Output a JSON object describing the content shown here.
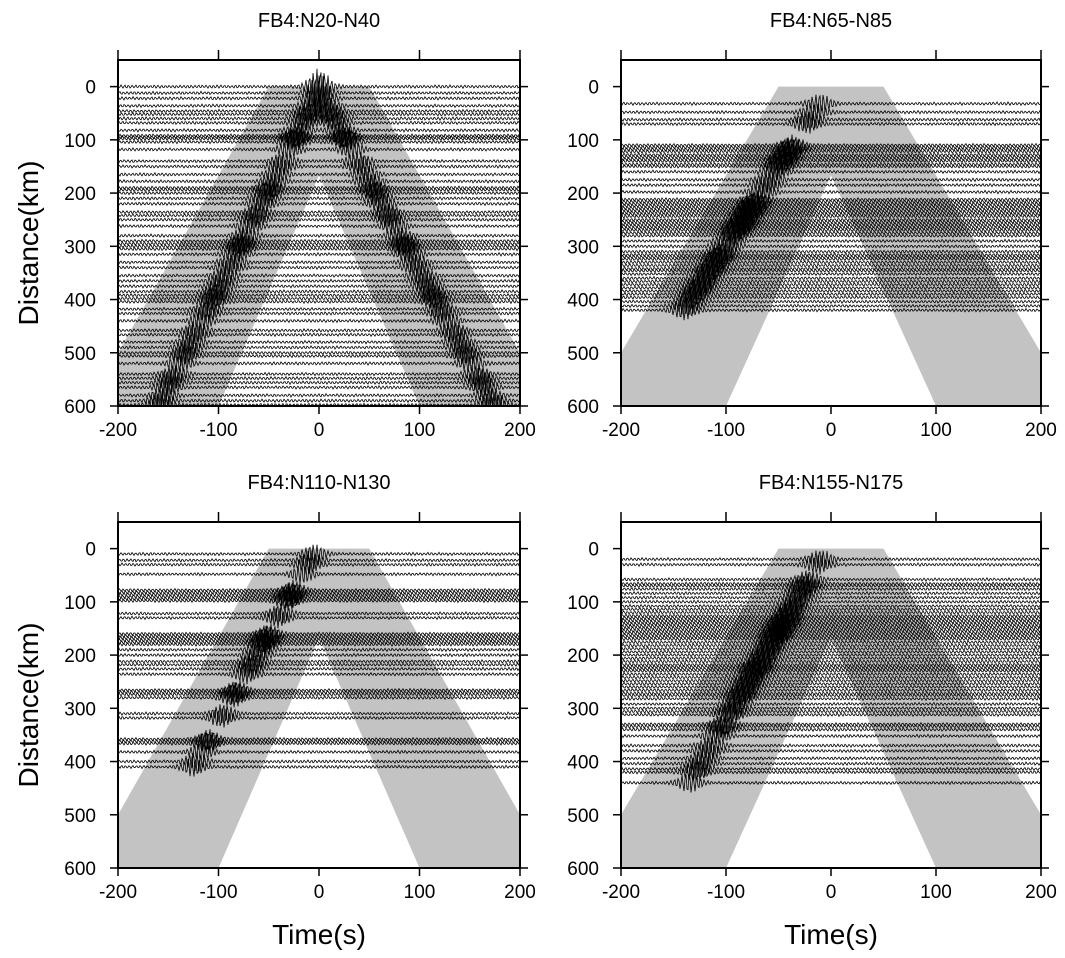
{
  "chart_data": [
    {
      "type": "seismic-record-section",
      "title": "FB4:N20-N40",
      "xlabel": "",
      "ylabel": "Distance(km)",
      "xlim": [
        -200,
        200
      ],
      "ylim": [
        600,
        -50
      ],
      "xticks": [
        "-200",
        "-100",
        "0",
        "100",
        "200"
      ],
      "yticks": [
        "0",
        "100",
        "200",
        "300",
        "400",
        "500",
        "600"
      ],
      "window": {
        "start_s": -50,
        "end_s": 50,
        "top_km": 0,
        "slope_s_per_km": 0.3
      },
      "trace_distances_km": [
        0,
        12,
        22,
        36,
        46,
        52,
        60,
        68,
        82,
        92,
        95,
        98,
        104,
        118,
        140,
        150,
        165,
        178,
        190,
        194,
        200,
        210,
        220,
        236,
        242,
        250,
        262,
        280,
        290,
        295,
        300,
        305,
        315,
        330,
        340,
        355,
        365,
        375,
        385,
        392,
        398,
        404,
        418,
        426,
        440,
        458,
        466,
        480,
        490,
        500,
        506,
        520,
        540,
        548,
        556,
        565,
        580,
        590,
        598
      ],
      "arrivals": [
        {
          "branch": "negative",
          "points": [
            [
              0,
              10
            ],
            [
              -160,
              600
            ]
          ]
        },
        {
          "branch": "positive",
          "points": [
            [
              0,
              10
            ],
            [
              175,
              600
            ]
          ]
        }
      ]
    },
    {
      "type": "seismic-record-section",
      "title": "FB4:N65-N85",
      "xlabel": "",
      "ylabel": "",
      "xlim": [
        -200,
        200
      ],
      "ylim": [
        600,
        -50
      ],
      "xticks": [
        "-200",
        "-100",
        "0",
        "100",
        "200"
      ],
      "yticks": [
        "0",
        "100",
        "200",
        "300",
        "400",
        "500",
        "600"
      ],
      "window": {
        "start_s": -50,
        "end_s": 50,
        "top_km": 0,
        "slope_s_per_km": 0.3
      },
      "trace_distances_km": [
        32,
        48,
        62,
        70,
        110,
        114,
        118,
        122,
        128,
        132,
        136,
        140,
        146,
        150,
        160,
        175,
        185,
        198,
        212,
        216,
        220,
        224,
        228,
        232,
        236,
        240,
        244,
        250,
        254,
        258,
        262,
        266,
        270,
        275,
        280,
        290,
        300,
        310,
        316,
        320,
        324,
        330,
        336,
        342,
        346,
        352,
        360,
        366,
        372,
        378,
        384,
        390,
        396,
        404,
        412,
        420
      ],
      "arrivals": [
        {
          "branch": "negative",
          "points": [
            [
              -10,
              30
            ],
            [
              -140,
              420
            ]
          ]
        }
      ]
    },
    {
      "type": "seismic-record-section",
      "title": "FB4:N110-N130",
      "xlabel": "Time(s)",
      "ylabel": "Distance(km)",
      "xlim": [
        -200,
        200
      ],
      "ylim": [
        600,
        -50
      ],
      "xticks": [
        "-200",
        "-100",
        "0",
        "100",
        "200"
      ],
      "yticks": [
        "0",
        "100",
        "200",
        "300",
        "400",
        "500",
        "600"
      ],
      "window": {
        "start_s": -50,
        "end_s": 50,
        "top_km": 0,
        "slope_s_per_km": 0.3
      },
      "trace_distances_km": [
        10,
        22,
        30,
        48,
        78,
        82,
        86,
        90,
        94,
        98,
        122,
        130,
        160,
        164,
        168,
        172,
        176,
        180,
        190,
        200,
        212,
        218,
        226,
        236,
        266,
        270,
        274,
        280,
        310,
        318,
        358,
        362,
        366,
        382,
        400,
        410
      ],
      "arrivals": [
        {
          "branch": "negative",
          "points": [
            [
              -5,
              10
            ],
            [
              -125,
              410
            ]
          ]
        }
      ]
    },
    {
      "type": "seismic-record-section",
      "title": "FB4:N155-N175",
      "xlabel": "Time(s)",
      "ylabel": "",
      "xlim": [
        -200,
        200
      ],
      "ylim": [
        600,
        -50
      ],
      "xticks": [
        "-200",
        "-100",
        "0",
        "100",
        "200"
      ],
      "yticks": [
        "0",
        "100",
        "200",
        "300",
        "400",
        "500",
        "600"
      ],
      "window": {
        "start_s": -50,
        "end_s": 50,
        "top_km": 0,
        "slope_s_per_km": 0.3
      },
      "trace_distances_km": [
        20,
        30,
        58,
        66,
        70,
        76,
        84,
        92,
        100,
        108,
        114,
        120,
        126,
        130,
        134,
        138,
        142,
        146,
        150,
        154,
        158,
        162,
        166,
        170,
        176,
        182,
        188,
        194,
        200,
        206,
        212,
        218,
        222,
        226,
        230,
        236,
        242,
        248,
        254,
        260,
        266,
        272,
        276,
        282,
        292,
        300,
        306,
        312,
        330,
        334,
        340,
        352,
        370,
        380,
        394,
        404,
        414,
        420,
        440
      ],
      "arrivals": [
        {
          "branch": "negative",
          "points": [
            [
              -10,
              20
            ],
            [
              -135,
              440
            ]
          ]
        }
      ]
    }
  ]
}
